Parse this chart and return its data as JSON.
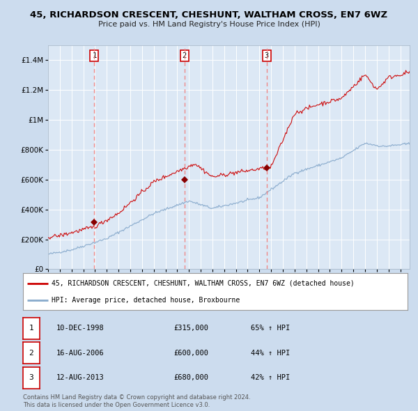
{
  "title": "45, RICHARDSON CRESCENT, CHESHUNT, WALTHAM CROSS, EN7 6WZ",
  "subtitle": "Price paid vs. HM Land Registry's House Price Index (HPI)",
  "bg_color": "#ccdcee",
  "plot_bg_color": "#dce8f5",
  "red_line_color": "#cc0000",
  "blue_line_color": "#88aacc",
  "sale_marker_color": "#880000",
  "dashed_line_color": "#ee8888",
  "grid_color": "#ffffff",
  "transactions": [
    {
      "label": "1",
      "date": "10-DEC-1998",
      "price": 315000,
      "pct": "65%",
      "sale_x": 1998.94
    },
    {
      "label": "2",
      "date": "16-AUG-2006",
      "price": 600000,
      "pct": "44%",
      "sale_x": 2006.62
    },
    {
      "label": "3",
      "date": "12-AUG-2013",
      "price": 680000,
      "pct": "42%",
      "sale_x": 2013.62
    }
  ],
  "ylim": [
    0,
    1500000
  ],
  "xlim_start": 1995.0,
  "xlim_end": 2025.8,
  "footer_line1": "Contains HM Land Registry data © Crown copyright and database right 2024.",
  "footer_line2": "This data is licensed under the Open Government Licence v3.0.",
  "legend_red": "45, RICHARDSON CRESCENT, CHESHUNT, WALTHAM CROSS, EN7 6WZ (detached house)",
  "legend_blue": "HPI: Average price, detached house, Broxbourne"
}
